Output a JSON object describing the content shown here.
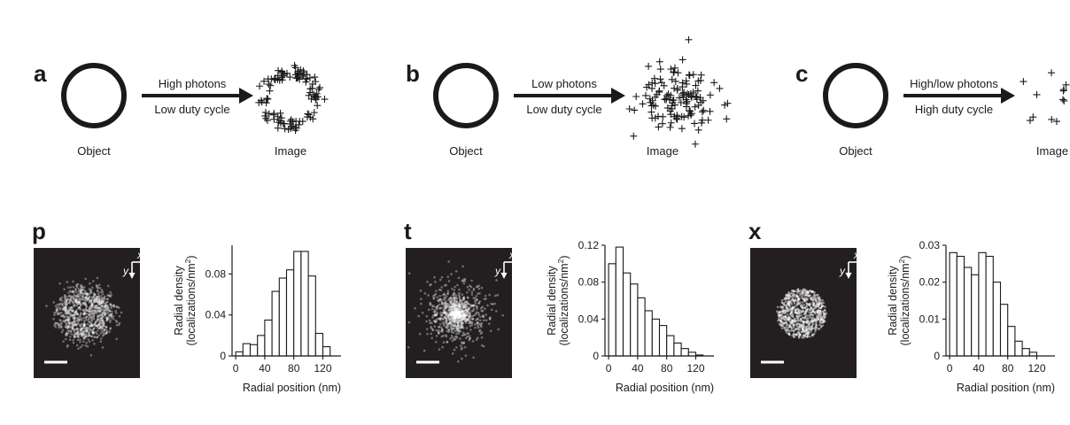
{
  "schematics": [
    {
      "letter": "a",
      "object_label": "Object",
      "arrow_top": "High photons",
      "arrow_bottom": "Low duty cycle",
      "image_label": "Image"
    },
    {
      "letter": "b",
      "object_label": "Object",
      "arrow_top": "Low photons",
      "arrow_bottom": "Low duty cycle",
      "image_label": "Image"
    },
    {
      "letter": "c",
      "object_label": "Object",
      "arrow_top": "High/low photons",
      "arrow_bottom": "High duty cycle",
      "image_label": "Image"
    }
  ],
  "micrographs": [
    {
      "letter": "p",
      "pattern": "ring",
      "axis_x": "x",
      "axis_y": "y"
    },
    {
      "letter": "t",
      "pattern": "blob",
      "axis_x": "x",
      "axis_y": "y"
    },
    {
      "letter": "x",
      "pattern": "sparse",
      "axis_x": "x",
      "axis_y": "y"
    }
  ],
  "chart_data": [
    {
      "type": "bar",
      "panel": "p",
      "xlabel": "Radial position (nm)",
      "ylabel": "Radial density",
      "ylabel_line2": "(localizations/nm",
      "ylabel_sup": "2",
      "ylabel_close": ")",
      "bin_width_nm": 10,
      "bin_starts_nm": [
        0,
        10,
        20,
        30,
        40,
        50,
        60,
        70,
        80,
        90,
        100,
        110,
        120
      ],
      "values": [
        0.004,
        0.012,
        0.011,
        0.02,
        0.035,
        0.063,
        0.076,
        0.084,
        0.102,
        0.102,
        0.078,
        0.022,
        0.009
      ],
      "ylim": [
        0,
        0.108
      ],
      "yticks": [
        0,
        0.04,
        0.08
      ],
      "ytick_labels": [
        "0",
        "0.04",
        "0.08"
      ],
      "xlim": [
        -5,
        145
      ],
      "xticks": [
        0,
        40,
        80,
        120
      ],
      "xtick_labels": [
        "0",
        "40",
        "80",
        "120"
      ]
    },
    {
      "type": "bar",
      "panel": "t",
      "xlabel": "Radial position (nm)",
      "ylabel": "Radial density",
      "ylabel_line2": "(localizations/nm",
      "ylabel_sup": "2",
      "ylabel_close": ")",
      "bin_width_nm": 10,
      "bin_starts_nm": [
        0,
        10,
        20,
        30,
        40,
        50,
        60,
        70,
        80,
        90,
        100,
        110,
        120
      ],
      "values": [
        0.1,
        0.118,
        0.09,
        0.078,
        0.063,
        0.049,
        0.04,
        0.033,
        0.022,
        0.014,
        0.008,
        0.004,
        0.001
      ],
      "ylim": [
        0,
        0.12
      ],
      "yticks": [
        0,
        0.04,
        0.08,
        0.12
      ],
      "ytick_labels": [
        "0",
        "0.04",
        "0.08",
        "0.12"
      ],
      "xlim": [
        -5,
        145
      ],
      "xticks": [
        0,
        40,
        80,
        120
      ],
      "xtick_labels": [
        "0",
        "40",
        "80",
        "120"
      ]
    },
    {
      "type": "bar",
      "panel": "x",
      "xlabel": "Radial position (nm)",
      "ylabel": "Radial density",
      "ylabel_line2": "(localizations/nm",
      "ylabel_sup": "2",
      "ylabel_close": ")",
      "bin_width_nm": 10,
      "bin_starts_nm": [
        0,
        10,
        20,
        30,
        40,
        50,
        60,
        70,
        80,
        90,
        100,
        110,
        120
      ],
      "values": [
        0.028,
        0.027,
        0.024,
        0.022,
        0.028,
        0.027,
        0.02,
        0.014,
        0.008,
        0.004,
        0.002,
        0.001,
        0.0
      ],
      "ylim": [
        0,
        0.03
      ],
      "yticks": [
        0,
        0.01,
        0.02,
        0.03
      ],
      "ytick_labels": [
        "0",
        "0.01",
        "0.02",
        "0.03"
      ],
      "xlim": [
        -5,
        145
      ],
      "xticks": [
        0,
        40,
        80,
        120
      ],
      "xtick_labels": [
        "0",
        "40",
        "80",
        "120"
      ]
    }
  ]
}
